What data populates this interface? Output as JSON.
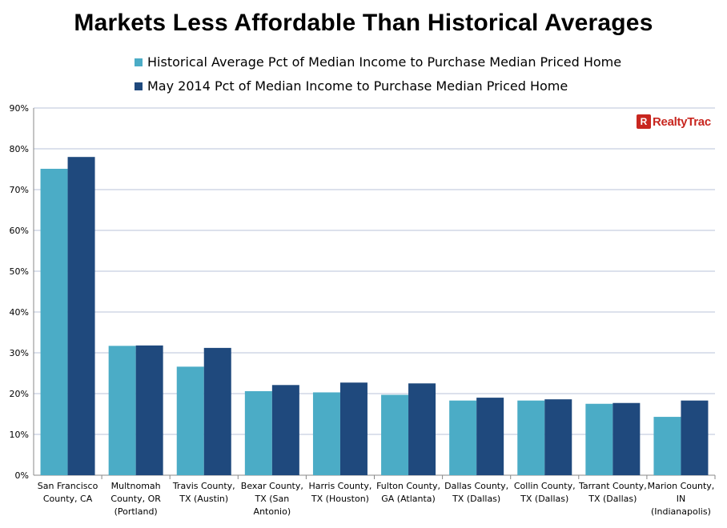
{
  "chart_data": {
    "type": "bar",
    "title": "Markets Less Affordable Than Historical Averages",
    "categories": [
      "San Francisco County, CA",
      "Multnomah County, OR (Portland)",
      "Travis County, TX (Austin)",
      "Bexar County, TX (San Antonio)",
      "Harris County, TX (Houston)",
      "Fulton County, GA (Atlanta)",
      "Dallas County, TX (Dallas)",
      "Collin County, TX (Dallas)",
      "Tarrant County, TX (Dallas)",
      "Marion County, IN (Indianapolis)"
    ],
    "category_lines": [
      [
        "San Francisco",
        "County, CA"
      ],
      [
        "Multnomah",
        "County, OR",
        "(Portland)"
      ],
      [
        "Travis County,",
        "TX (Austin)"
      ],
      [
        "Bexar County,",
        "TX (San",
        "Antonio)"
      ],
      [
        "Harris County,",
        "TX (Houston)"
      ],
      [
        "Fulton County,",
        "GA (Atlanta)"
      ],
      [
        "Dallas County,",
        "TX (Dallas)"
      ],
      [
        "Collin County,",
        "TX (Dallas)"
      ],
      [
        "Tarrant County,",
        "TX (Dallas)"
      ],
      [
        "Marion County,",
        "IN",
        "(Indianapolis)"
      ]
    ],
    "series": [
      {
        "name": "Historical Average Pct of Median Income to Purchase Median Priced Home",
        "color": "#4bacc6",
        "values": [
          75.1,
          31.7,
          26.6,
          20.6,
          20.3,
          19.7,
          18.3,
          18.3,
          17.5,
          14.3
        ]
      },
      {
        "name": "May 2014 Pct of Median Income to Purchase Median Priced Home",
        "color": "#1f497d",
        "values": [
          78.0,
          31.8,
          31.2,
          22.1,
          22.7,
          22.5,
          19.0,
          18.6,
          17.7,
          18.3
        ]
      }
    ],
    "ylim": [
      0,
      90
    ],
    "yticks": [
      "0%",
      "10%",
      "20%",
      "30%",
      "40%",
      "50%",
      "60%",
      "70%",
      "80%",
      "90%"
    ],
    "ytick_values": [
      0,
      10,
      20,
      30,
      40,
      50,
      60,
      70,
      80,
      90
    ],
    "xlabel": "",
    "ylabel": "",
    "grid": true,
    "legend_position": "top"
  },
  "logo": {
    "text": "RealtyTrac",
    "mark": "R",
    "color": "#c8261f"
  }
}
